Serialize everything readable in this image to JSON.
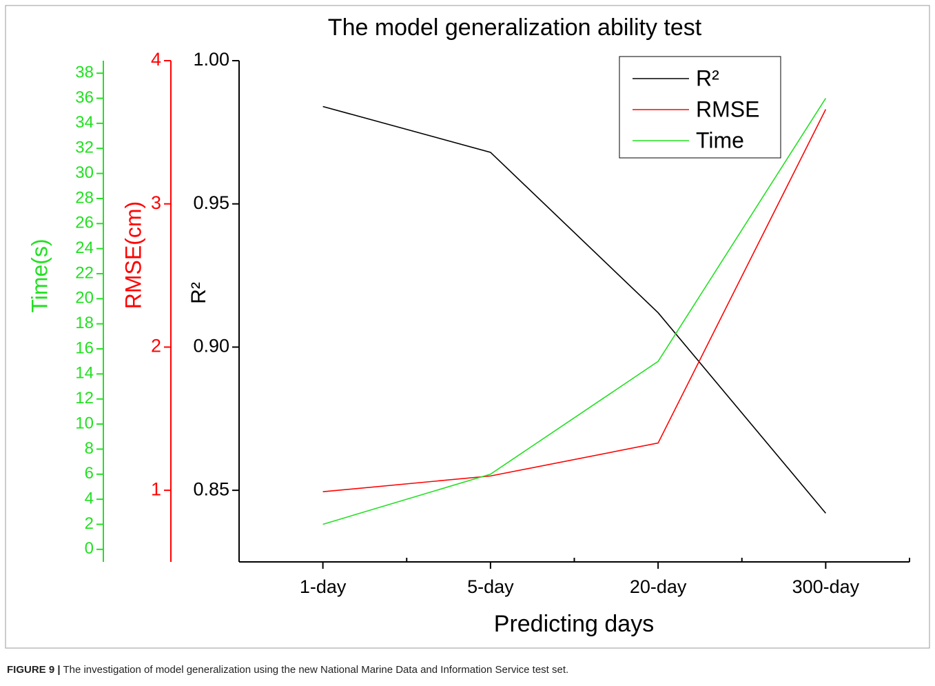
{
  "chart_data": {
    "type": "line",
    "title": "The model generalization ability test",
    "xlabel": "Predicting days",
    "ylabel": "R²",
    "y2label": "RMSE(cm)",
    "y3label": "Time(s)",
    "categories": [
      "1-day",
      "5-day",
      "20-day",
      "300-day"
    ],
    "series": [
      {
        "name": "R²",
        "color": "#000000",
        "values": [
          0.984,
          0.968,
          0.912,
          0.842
        ]
      },
      {
        "name": "RMSE",
        "color": "#ff0000",
        "axis": "y2",
        "values": [
          0.99,
          1.1,
          1.33,
          3.66
        ]
      },
      {
        "name": "Time",
        "color": "#22e022",
        "axis": "y3",
        "values": [
          2,
          6,
          15,
          36
        ]
      }
    ],
    "ylim": [
      0.825,
      1.0
    ],
    "yticks": [
      {
        "value": 0.85,
        "label": "0.85"
      },
      {
        "value": 0.9,
        "label": "0.90"
      },
      {
        "value": 0.95,
        "label": "0.95"
      },
      {
        "value": 1.0,
        "label": "1.00"
      }
    ],
    "y2lim": [
      0.5,
      4
    ],
    "y2ticks": [
      1,
      2,
      3,
      4
    ],
    "y3lim": [
      -1,
      39
    ],
    "y3ticks": [
      0,
      2,
      4,
      6,
      8,
      10,
      12,
      14,
      16,
      18,
      20,
      22,
      24,
      26,
      28,
      30,
      32,
      34,
      36,
      38
    ],
    "legend": "upper right",
    "grid": false
  },
  "caption": {
    "label": "FIGURE 9 |",
    "text": " The investigation of model generalization using the new National Marine Data and Information Service test set."
  }
}
